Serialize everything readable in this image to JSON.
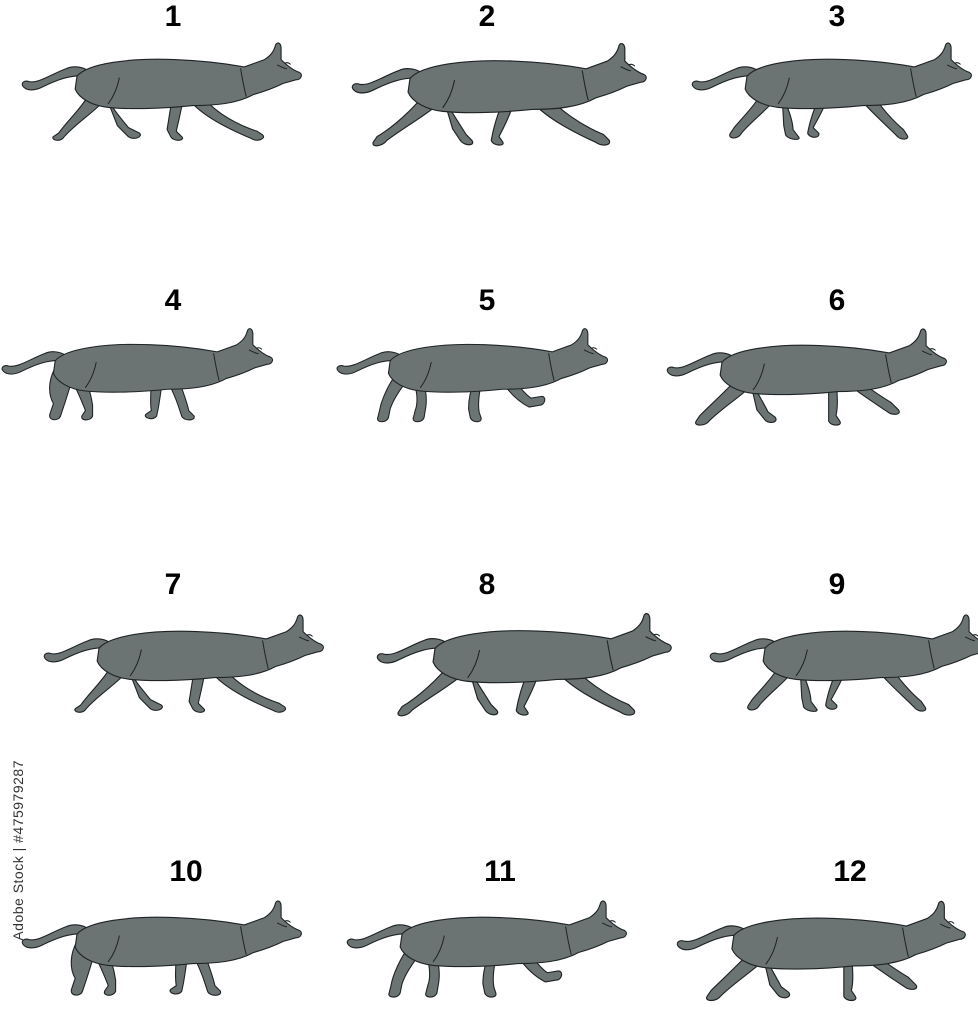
{
  "sheet": {
    "colors": {
      "cat_fill": "#6b7473",
      "outline": "#1f2326",
      "number": "#000000"
    },
    "frames": [
      {
        "number": "1"
      },
      {
        "number": "2"
      },
      {
        "number": "3"
      },
      {
        "number": "4"
      },
      {
        "number": "5"
      },
      {
        "number": "6"
      },
      {
        "number": "7"
      },
      {
        "number": "8"
      },
      {
        "number": "9"
      },
      {
        "number": "10"
      },
      {
        "number": "11"
      },
      {
        "number": "12"
      }
    ],
    "stock_id": "Adobe Stock | #475979287"
  }
}
